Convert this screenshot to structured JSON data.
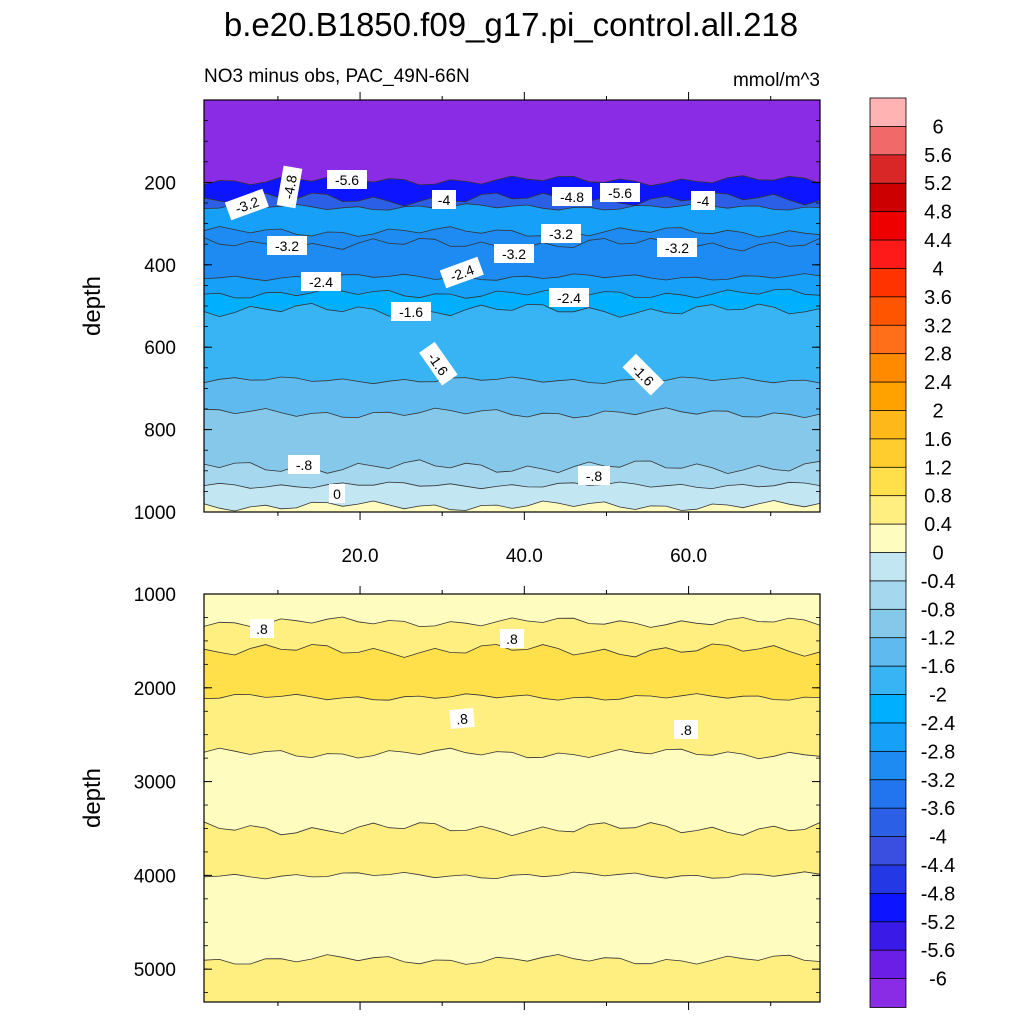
{
  "chart_data": [
    {
      "type": "heatmap",
      "title": "b.e20.B1850.f09_g17.pi_control.all.218",
      "subtitle_left": "NO3 minus obs, PAC_49N-66N",
      "subtitle_right": "mmol/m^3",
      "xlabel": "",
      "ylabel": "depth",
      "xlim": [
        1,
        76
      ],
      "ylim": [
        1000,
        0
      ],
      "x_ticks": [
        "20.0",
        "40.0",
        "60.0"
      ],
      "y_ticks": [
        "200",
        "400",
        "600",
        "800",
        "1000"
      ],
      "contour_labels": [
        "-4.8",
        "-5.6",
        "-3.2",
        "-4",
        "-4.8",
        "-5.6",
        "-4",
        "-3.2",
        "-3.2",
        "-3.2",
        "-3.2",
        "-2.4",
        "-2.4",
        "-2.4",
        "-1.6",
        "-1.6",
        "-1.6",
        "-.8",
        "-.8",
        "0"
      ],
      "bands": [
        {
          "top_depth": 0,
          "value": -6.2
        },
        {
          "top_depth": 195,
          "value": -5.0
        },
        {
          "top_depth": 240,
          "value": -3.6
        },
        {
          "top_depth": 260,
          "value": -2.6
        },
        {
          "top_depth": 320,
          "value": -3.0
        },
        {
          "top_depth": 350,
          "value": -2.8
        },
        {
          "top_depth": 430,
          "value": -2.6
        },
        {
          "top_depth": 470,
          "value": -2.2
        },
        {
          "top_depth": 510,
          "value": -1.8
        },
        {
          "top_depth": 680,
          "value": -1.4
        },
        {
          "top_depth": 760,
          "value": -1.0
        },
        {
          "top_depth": 890,
          "value": -0.6
        },
        {
          "top_depth": 935,
          "value": -0.2
        },
        {
          "top_depth": 985,
          "value": 0.2
        }
      ]
    },
    {
      "type": "heatmap",
      "xlabel": "",
      "ylabel": "depth",
      "xlim": [
        1,
        76
      ],
      "ylim": [
        5350,
        1000
      ],
      "y_ticks": [
        "1000",
        "2000",
        "3000",
        "4000",
        "5000"
      ],
      "contour_labels": [
        ".8",
        ".8",
        ".8",
        ".8"
      ],
      "bands": [
        {
          "top_depth": 1000,
          "value": 0.2
        },
        {
          "top_depth": 1300,
          "value": 0.6
        },
        {
          "top_depth": 1600,
          "value": 1.0
        },
        {
          "top_depth": 2100,
          "value": 0.6
        },
        {
          "top_depth": 2700,
          "value": 0.2
        },
        {
          "top_depth": 3500,
          "value": 0.6
        },
        {
          "top_depth": 4000,
          "value": 0.2
        },
        {
          "top_depth": 4900,
          "value": 0.6
        }
      ]
    }
  ],
  "colorbar": {
    "labels": [
      "6",
      "5.6",
      "5.2",
      "4.8",
      "4.4",
      "4",
      "3.6",
      "3.2",
      "2.8",
      "2.4",
      "2",
      "1.6",
      "1.2",
      "0.8",
      "0.4",
      "0",
      "-0.4",
      "-0.8",
      "-1.2",
      "-1.6",
      "-2",
      "-2.4",
      "-2.8",
      "-3.2",
      "-3.6",
      "-4",
      "-4.4",
      "-4.8",
      "-5.2",
      "-5.6",
      "-6"
    ],
    "colors": [
      "#ffb3b3",
      "#f06a6a",
      "#d92626",
      "#cc0000",
      "#ee0000",
      "#ff1a1a",
      "#ff3300",
      "#ff5500",
      "#ff6f1a",
      "#ff8a00",
      "#ffa200",
      "#ffb81a",
      "#ffce2e",
      "#ffe04a",
      "#ffee80",
      "#fffcbf",
      "#c3e6f3",
      "#a5d8ee",
      "#86c8ea",
      "#5fbaf0",
      "#38b4f5",
      "#00b0ff",
      "#16a0f8",
      "#1e8bf2",
      "#2275ee",
      "#2a5fe6",
      "#3a4ee0",
      "#2438e6",
      "#0d14ff",
      "#3a1ae6",
      "#6a1ee6",
      "#8a2be6"
    ]
  }
}
